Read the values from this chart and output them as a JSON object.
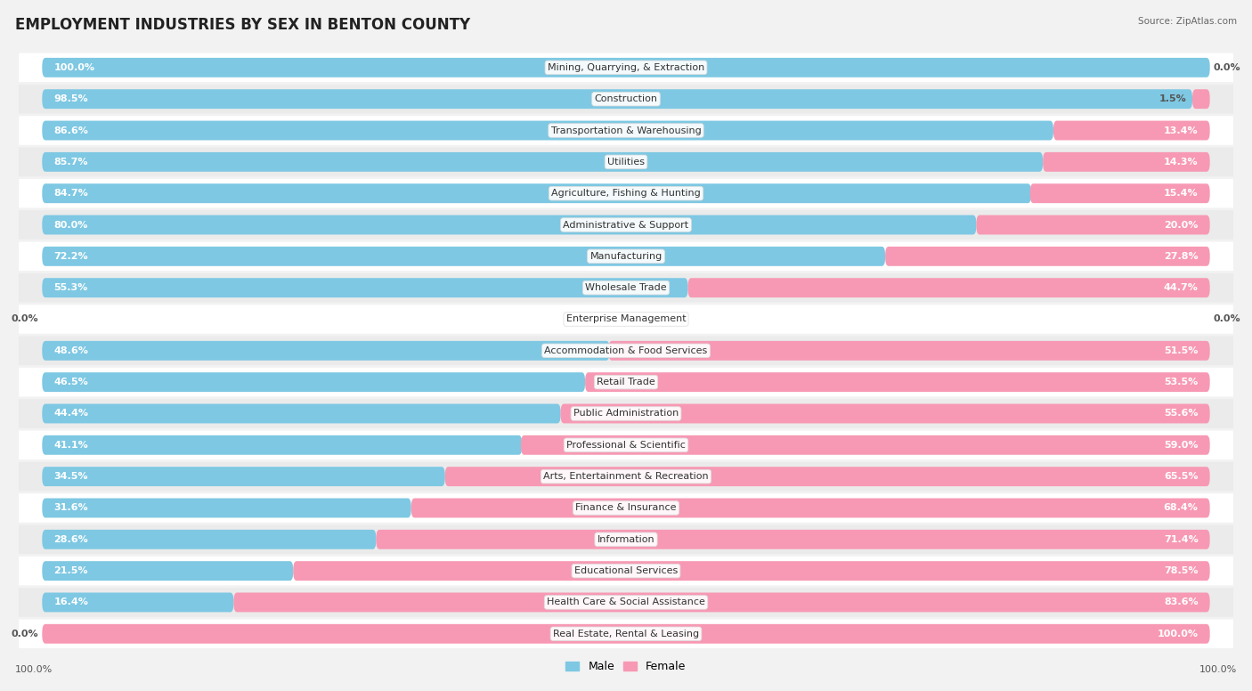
{
  "title": "EMPLOYMENT INDUSTRIES BY SEX IN BENTON COUNTY",
  "source": "Source: ZipAtlas.com",
  "industries": [
    "Mining, Quarrying, & Extraction",
    "Construction",
    "Transportation & Warehousing",
    "Utilities",
    "Agriculture, Fishing & Hunting",
    "Administrative & Support",
    "Manufacturing",
    "Wholesale Trade",
    "Enterprise Management",
    "Accommodation & Food Services",
    "Retail Trade",
    "Public Administration",
    "Professional & Scientific",
    "Arts, Entertainment & Recreation",
    "Finance & Insurance",
    "Information",
    "Educational Services",
    "Health Care & Social Assistance",
    "Real Estate, Rental & Leasing"
  ],
  "male_pct": [
    100.0,
    98.5,
    86.6,
    85.7,
    84.7,
    80.0,
    72.2,
    55.3,
    0.0,
    48.6,
    46.5,
    44.4,
    41.1,
    34.5,
    31.6,
    28.6,
    21.5,
    16.4,
    0.0
  ],
  "female_pct": [
    0.0,
    1.5,
    13.4,
    14.3,
    15.4,
    20.0,
    27.8,
    44.7,
    0.0,
    51.5,
    53.5,
    55.6,
    59.0,
    65.5,
    68.4,
    71.4,
    78.5,
    83.6,
    100.0
  ],
  "male_color": "#7ec8e3",
  "female_color": "#f799b4",
  "bg_color": "#f2f2f2",
  "row_bg_even": "#ffffff",
  "row_bg_odd": "#ebebeb",
  "title_fontsize": 12,
  "label_fontsize": 8,
  "pct_fontsize": 8,
  "legend_fontsize": 9
}
